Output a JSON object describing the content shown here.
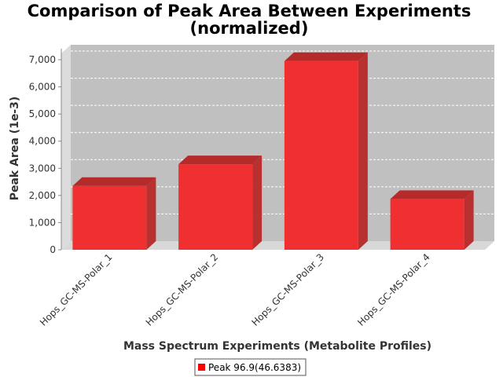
{
  "chart_data": {
    "type": "bar",
    "title_line1": "Comparison of Peak Area Between Experiments",
    "title_line2": "(normalized)",
    "xlabel": "Mass Spectrum Experiments (Metabolite Profiles)",
    "ylabel": "Peak Area (1e-3)",
    "categories": [
      "Hops_GC-MS-Polar_1",
      "Hops_GC-MS-Polar_2",
      "Hops_GC-MS-Polar_3",
      "Hops_GC-MS-Polar_4"
    ],
    "series": [
      {
        "name": "Peak 96.9(46.6383)",
        "values": [
          2350,
          3150,
          6950,
          1870
        ]
      }
    ],
    "ylim": [
      0,
      7000
    ],
    "yticks": [
      0,
      1000,
      2000,
      3000,
      4000,
      5000,
      6000,
      7000
    ],
    "ytick_labels": [
      "0",
      "1,000",
      "2,000",
      "3,000",
      "4,000",
      "5,000",
      "6,000",
      "7,000"
    ],
    "grid": true,
    "legend_position": "bottom",
    "colors": {
      "bar": "#f03030",
      "bar_top": "#b52a2a",
      "bar_side": "#b83030",
      "plot_bg": "#c0c0c0",
      "gridline": "#ffffff"
    }
  }
}
